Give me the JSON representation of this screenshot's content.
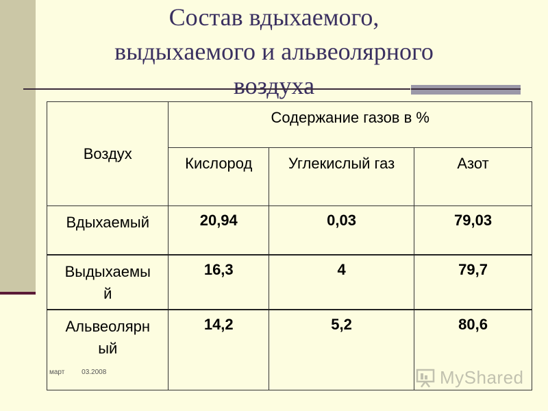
{
  "slide": {
    "title_lines": [
      "Состав вдыхаемого,",
      "выдыхаемого  и альвеолярного",
      "воздуха"
    ]
  },
  "table": {
    "air_header": "Воздух",
    "gas_header": "Содержание газов в %",
    "gas_columns": [
      "Кислород",
      "Углекислый газ",
      "Азот"
    ],
    "rows": [
      {
        "label": "Вдыхаемый",
        "values": [
          "20,94",
          "0,03",
          "79,03"
        ]
      },
      {
        "label_lines": [
          "Выдыхаемы",
          "й"
        ],
        "values": [
          "16,3",
          "4",
          "79,7"
        ]
      },
      {
        "label_lines": [
          "Альвеолярн",
          "ый"
        ],
        "values": [
          "14,2",
          "5,2",
          "80,6"
        ]
      }
    ]
  },
  "footer": {
    "month": "март",
    "date": "03.2008"
  },
  "watermark": {
    "text": "MyShared",
    "icon": "presentation-board-icon"
  },
  "colors": {
    "background": "#fdfde0",
    "title": "#3a3060",
    "side_bar": "#cbc7a6",
    "accent_line": "#5a1a36"
  }
}
